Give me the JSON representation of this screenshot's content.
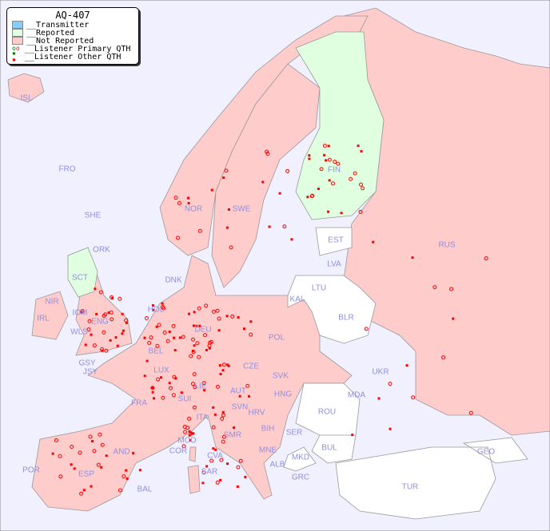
{
  "legend": {
    "title": "AQ-407",
    "items": [
      {
        "label": "__Transmitter",
        "color": "#87cefa"
      },
      {
        "label": "__Reported",
        "color": "#e0ffe0"
      },
      {
        "label": "__Not Reported",
        "color": "#ffcccc"
      },
      {
        "label": "__Listener Primary QTH",
        "marker": "circle"
      },
      {
        "label": "__Listener Other QTH",
        "marker": "square"
      }
    ]
  },
  "colors": {
    "sea": "#f0f0ff",
    "not_reported": "#ffcccc",
    "reported": "#e0ffe0",
    "no_data": "#ffffff",
    "listener": "#ff0000",
    "label": "#8f8fe0"
  },
  "countries": [
    "ISL",
    "FRO",
    "SHE",
    "ORK",
    "NOR",
    "SWE",
    "FIN",
    "EST",
    "RUS",
    "LVA",
    "LTU",
    "DNK",
    "KAL",
    "BLR",
    "HOL",
    "DEU",
    "POL",
    "IRL",
    "NIR",
    "SCT",
    "IOM",
    "WLS",
    "ENG",
    "BEL",
    "LUX",
    "GSY",
    "JSY",
    "CZE",
    "SVK",
    "UKR",
    "FRA",
    "SUI",
    "LIE",
    "AUT",
    "HNG",
    "MDA",
    "SVN",
    "HRV",
    "ROU",
    "ITA",
    "BIH",
    "SER",
    "SMR",
    "MCO",
    "COR",
    "BUL",
    "MNE",
    "MKD",
    "ALB",
    "GEO",
    "AND",
    "POR",
    "ESP",
    "CVA",
    "SAR",
    "BAL",
    "GRC",
    "TUR"
  ]
}
